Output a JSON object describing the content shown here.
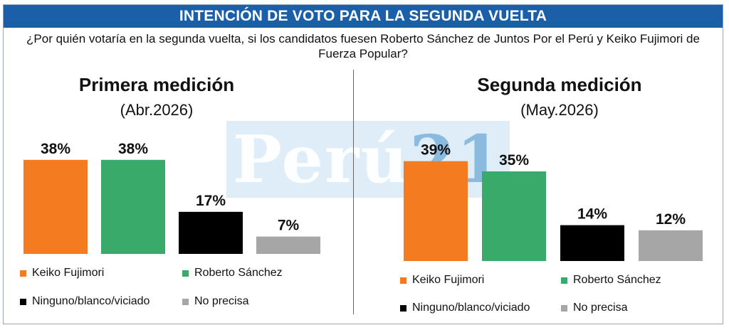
{
  "header": {
    "title": "INTENCIÓN DE VOTO PARA LA SEGUNDA VUELTA",
    "question": "¿Por quién votaría en la segunda vuelta, si los candidatos fuesen Roberto Sánchez de Juntos Por el Perú y Keiko Fujimori de Fuerza Popular?"
  },
  "watermark": {
    "text": "Perú",
    "number": "21"
  },
  "colors": {
    "keiko": "#f47b20",
    "roberto": "#3aaa6b",
    "ninguno": "#000000",
    "no_precisa": "#a6a6a6",
    "banner": "#1b5fa8"
  },
  "chart_data": [
    {
      "type": "bar",
      "title": "Primera medición",
      "subtitle": "(Abr.2026)",
      "categories": [
        "Keiko Fujimori",
        "Roberto Sánchez",
        "Ninguno/blanco/viciado",
        "No precisa"
      ],
      "values": [
        38,
        38,
        17,
        7
      ],
      "data_labels": [
        "38%",
        "38%",
        "17%",
        "7%"
      ],
      "colors": [
        "#f47b20",
        "#3aaa6b",
        "#000000",
        "#a6a6a6"
      ],
      "ylim": [
        0,
        40
      ],
      "grid": false,
      "legend": "bottom"
    },
    {
      "type": "bar",
      "title": "Segunda medición",
      "subtitle": "(May.2026)",
      "categories": [
        "Keiko Fujimori",
        "Roberto Sánchez",
        "Ninguno/blanco/viciado",
        "No precisa"
      ],
      "values": [
        39,
        35,
        14,
        12
      ],
      "data_labels": [
        "39%",
        "35%",
        "14%",
        "12%"
      ],
      "colors": [
        "#f47b20",
        "#3aaa6b",
        "#000000",
        "#a6a6a6"
      ],
      "ylim": [
        0,
        40
      ],
      "grid": false,
      "legend": "bottom"
    }
  ]
}
